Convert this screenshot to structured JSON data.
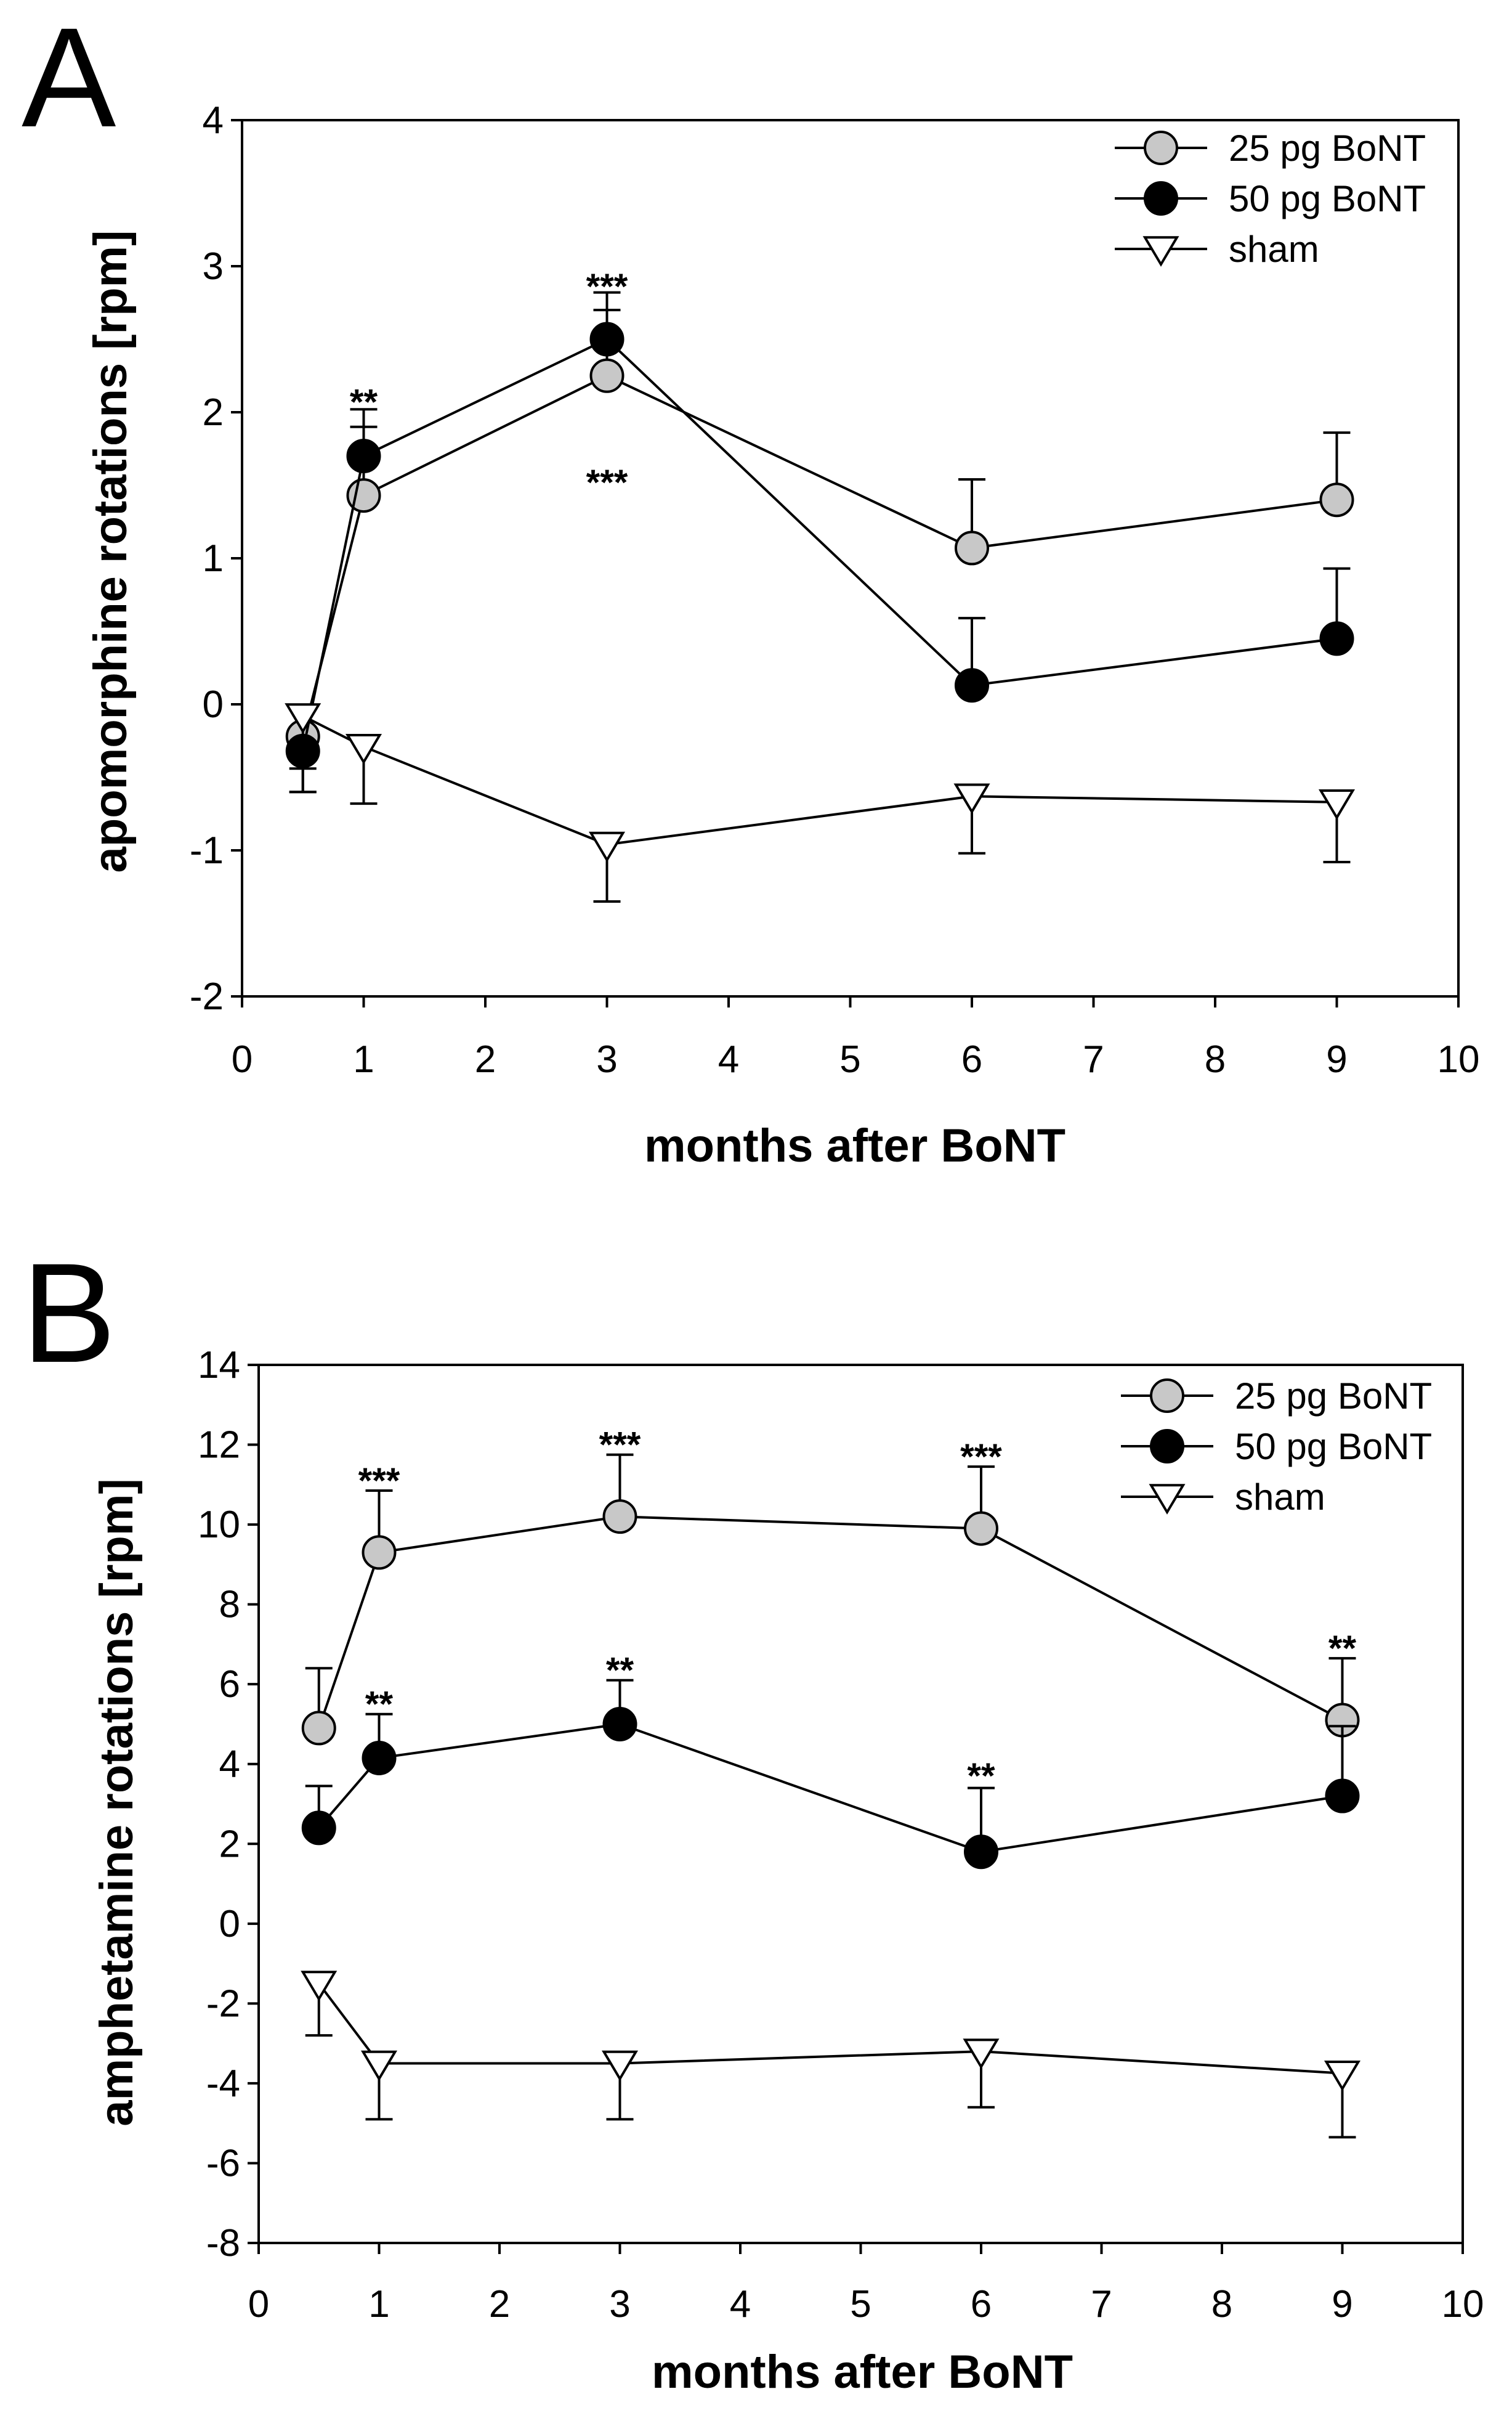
{
  "chart_data": [
    {
      "type": "line",
      "panel_label": "A",
      "xlabel": "months after BoNT",
      "ylabel": "apomorphine rotations [rpm]",
      "xlim": [
        0,
        10
      ],
      "ylim": [
        -2,
        4
      ],
      "xticks": [
        "0",
        "1",
        "2",
        "3",
        "4",
        "5",
        "6",
        "7",
        "8",
        "9",
        "10"
      ],
      "yticks": [
        "-2",
        "-1",
        "0",
        "1",
        "2",
        "3",
        "4"
      ],
      "legend_position": "top-right",
      "series": [
        {
          "name": "25 pg BoNT",
          "marker": "circle",
          "fill": "#c8c8c8",
          "x": [
            0.5,
            1,
            3,
            6,
            9
          ],
          "y": [
            -0.22,
            1.43,
            2.25,
            1.07,
            1.4
          ],
          "err": [
            0.38,
            0.47,
            0.45,
            0.47,
            0.46
          ]
        },
        {
          "name": "50 pg BoNT",
          "marker": "circle",
          "fill": "#000000",
          "x": [
            0.5,
            1,
            3,
            6,
            9
          ],
          "y": [
            -0.32,
            1.7,
            2.5,
            0.13,
            0.45
          ],
          "err": [
            0.28,
            0.32,
            0.32,
            0.46,
            0.48
          ]
        },
        {
          "name": "sham",
          "marker": "triangle-down",
          "fill": "#ffffff",
          "x": [
            0.5,
            1,
            3,
            6,
            9
          ],
          "y": [
            -0.08,
            -0.29,
            -0.96,
            -0.63,
            -0.67
          ],
          "err": [
            0.36,
            0.39,
            0.39,
            0.39,
            0.41
          ]
        }
      ],
      "annotations": [
        {
          "text": "**",
          "x": 1,
          "y": 2.07
        },
        {
          "text": "***",
          "x": 3,
          "y": 2.86
        },
        {
          "text": "***",
          "x": 3,
          "y": 1.52
        }
      ]
    },
    {
      "type": "line",
      "panel_label": "B",
      "xlabel": "months after BoNT",
      "ylabel": "amphetamine rotations [rpm]",
      "xlim": [
        0,
        10
      ],
      "ylim": [
        -8,
        14
      ],
      "xticks": [
        "0",
        "1",
        "2",
        "3",
        "4",
        "5",
        "6",
        "7",
        "8",
        "9",
        "10"
      ],
      "yticks": [
        "-8",
        "-6",
        "-4",
        "-2",
        "0",
        "2",
        "4",
        "6",
        "8",
        "10",
        "12",
        "14"
      ],
      "legend_position": "top-right",
      "series": [
        {
          "name": "25 pg BoNT",
          "marker": "circle",
          "fill": "#c8c8c8",
          "x": [
            0.5,
            1,
            3,
            6,
            9
          ],
          "y": [
            4.9,
            9.3,
            10.2,
            9.9,
            5.1
          ],
          "err": [
            1.5,
            1.55,
            1.55,
            1.55,
            1.55
          ]
        },
        {
          "name": "50 pg BoNT",
          "marker": "circle",
          "fill": "#000000",
          "x": [
            0.5,
            1,
            3,
            6,
            9
          ],
          "y": [
            2.4,
            4.15,
            5.0,
            1.8,
            3.2
          ],
          "err": [
            1.05,
            1.1,
            1.1,
            1.6,
            1.75
          ]
        },
        {
          "name": "sham",
          "marker": "triangle-down",
          "fill": "#ffffff",
          "x": [
            0.5,
            1,
            3,
            6,
            9
          ],
          "y": [
            -1.5,
            -3.5,
            -3.5,
            -3.2,
            -3.75
          ],
          "err": [
            1.3,
            1.4,
            1.4,
            1.4,
            1.6
          ]
        }
      ],
      "annotations": [
        {
          "text": "***",
          "x": 1,
          "y": 11.1
        },
        {
          "text": "***",
          "x": 3,
          "y": 12.0
        },
        {
          "text": "***",
          "x": 6,
          "y": 11.7
        },
        {
          "text": "**",
          "x": 9,
          "y": 6.9
        },
        {
          "text": "**",
          "x": 1,
          "y": 5.5
        },
        {
          "text": "**",
          "x": 3,
          "y": 6.35
        },
        {
          "text": "**",
          "x": 6,
          "y": 3.7
        }
      ]
    }
  ]
}
